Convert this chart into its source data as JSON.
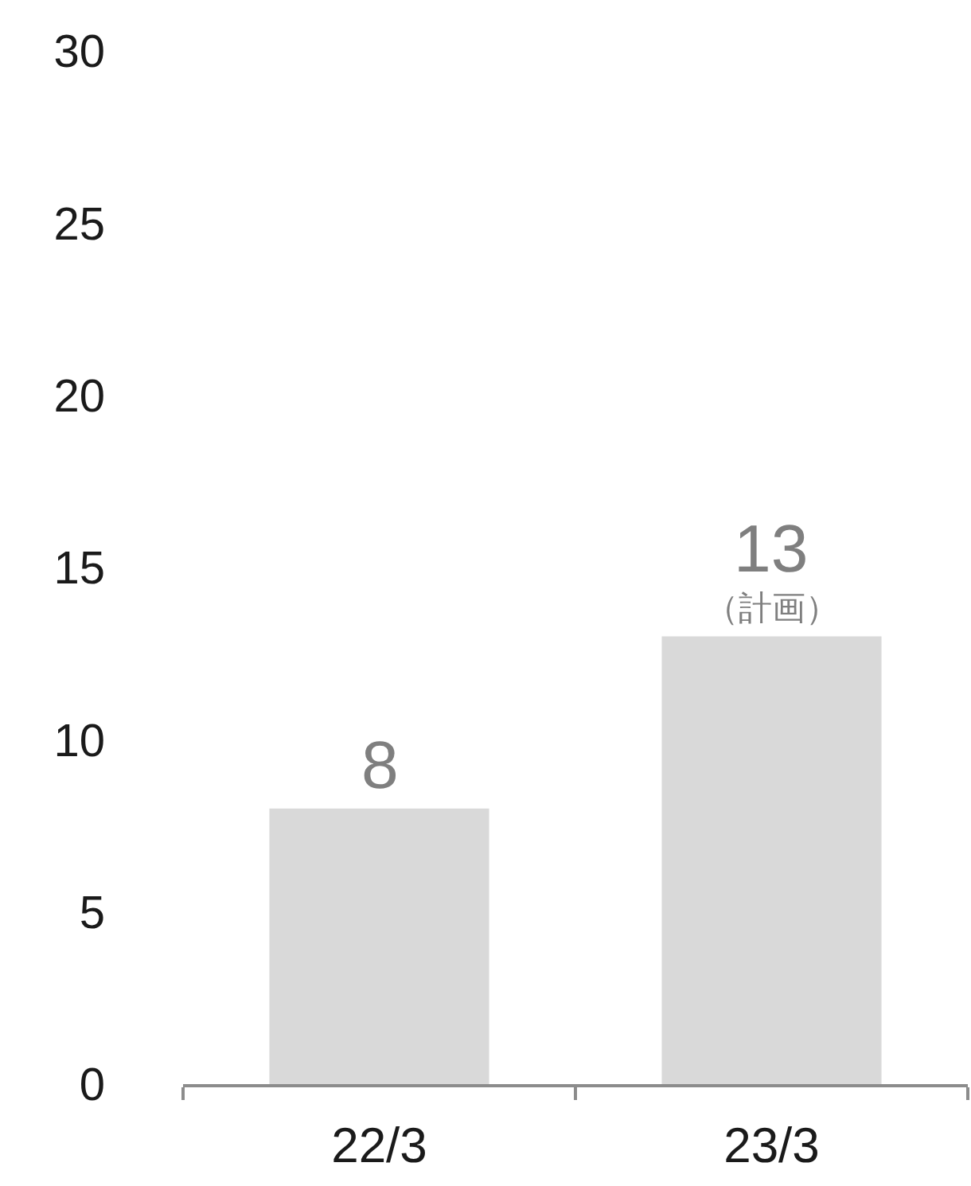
{
  "chart_data": {
    "type": "bar",
    "categories": [
      "22/3",
      "23/3"
    ],
    "values": [
      8,
      13
    ],
    "color": "#d9d9d9",
    "ylim": [
      0,
      30
    ],
    "yticks": [
      0,
      5,
      10,
      15,
      20,
      25,
      30
    ],
    "data_labels": true,
    "annotations": [
      {
        "text": "（計画）",
        "x": "23/3",
        "y": 13
      }
    ]
  }
}
